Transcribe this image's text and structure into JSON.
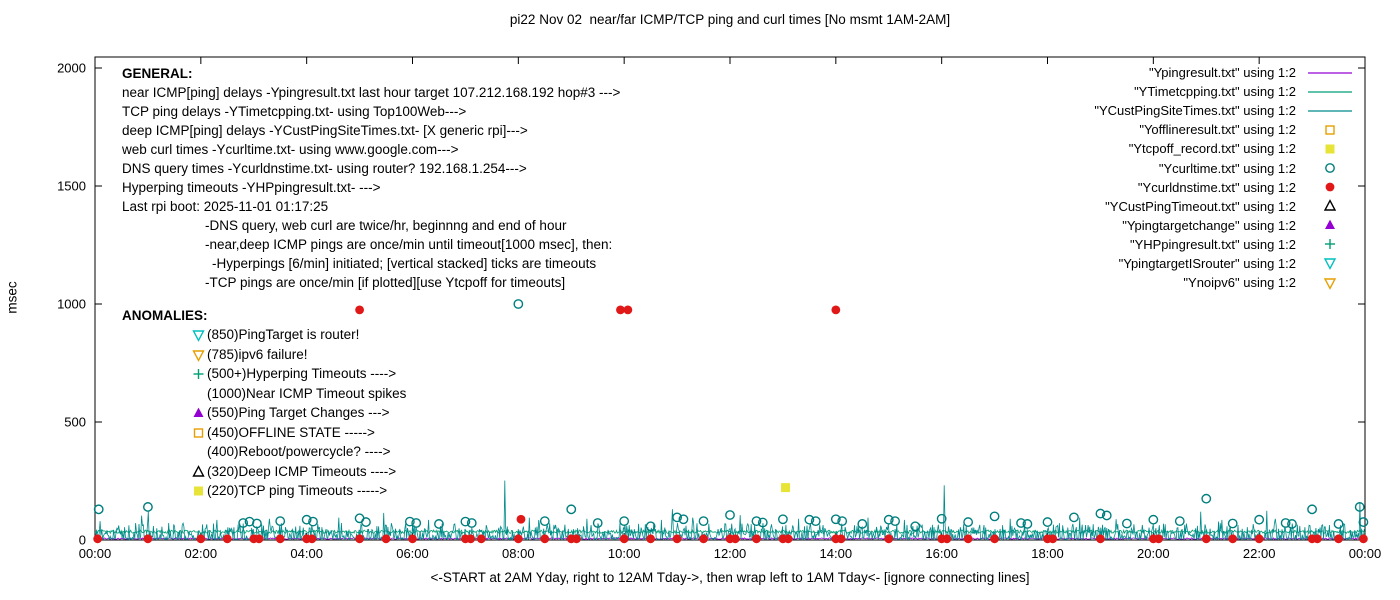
{
  "chart_data": {
    "type": "line+scatter",
    "title": "pi22 Nov 02  near/far ICMP/TCP ping and curl times [No msmt 1AM-2AM]",
    "xlabel": "<-START at 2AM Yday, right to 12AM Tday->, then wrap left to 1AM Tday<- [ignore connecting lines]",
    "ylabel": "msec",
    "x_range_hours": [
      0,
      24
    ],
    "ylim": [
      0,
      2000
    ],
    "x_ticks": [
      "00:00",
      "02:00",
      "04:00",
      "06:00",
      "08:00",
      "10:00",
      "12:00",
      "14:00",
      "16:00",
      "18:00",
      "20:00",
      "22:00",
      "00:00"
    ],
    "y_ticks": [
      0,
      500,
      1000,
      1500,
      2000
    ],
    "grid": false,
    "legend_position": "top-right-inside",
    "noise_seed": 42,
    "line_series": [
      {
        "name": "Ypingresult",
        "color": "#9400d3",
        "base": 3,
        "amp": 6,
        "skew": false,
        "spikes": []
      },
      {
        "name": "YTimetcpping",
        "color": "#009e73",
        "base": 28,
        "amp": 14,
        "skew": false,
        "spikes": []
      },
      {
        "name": "YCustPingSiteTimes",
        "color": "#008b8b",
        "base": 2,
        "amp": 70,
        "skew": true,
        "spikes": [
          [
            0.1,
            80
          ],
          [
            1.0,
            120
          ],
          [
            2.3,
            85
          ],
          [
            3.3,
            90
          ],
          [
            4.6,
            95
          ],
          [
            5.45,
            115
          ],
          [
            6.3,
            85
          ],
          [
            7.75,
            252
          ],
          [
            8.2,
            95
          ],
          [
            9.3,
            90
          ],
          [
            10.7,
            85
          ],
          [
            11.3,
            95
          ],
          [
            12.2,
            105
          ],
          [
            13.3,
            90
          ],
          [
            14.6,
            95
          ],
          [
            15.3,
            85
          ],
          [
            16.05,
            232
          ],
          [
            17.3,
            90
          ],
          [
            18.6,
            95
          ],
          [
            19.3,
            88
          ],
          [
            20.9,
            120
          ],
          [
            21.3,
            85
          ],
          [
            22.3,
            90
          ],
          [
            23.9,
            160
          ]
        ]
      }
    ],
    "scatter_series": [
      {
        "name": "Ycurltime",
        "marker": "circle-open",
        "color": "#007e7e",
        "points": [
          [
            0.07,
            130
          ],
          [
            1.0,
            140
          ],
          [
            2.8,
            72
          ],
          [
            2.92,
            78
          ],
          [
            3.06,
            70
          ],
          [
            3.5,
            80
          ],
          [
            4.0,
            86
          ],
          [
            4.12,
            78
          ],
          [
            5.0,
            92
          ],
          [
            5.12,
            76
          ],
          [
            5.95,
            78
          ],
          [
            6.07,
            72
          ],
          [
            6.5,
            68
          ],
          [
            7.0,
            78
          ],
          [
            7.12,
            72
          ],
          [
            8.0,
            1000
          ],
          [
            8.5,
            80
          ],
          [
            9.0,
            130
          ],
          [
            9.5,
            72
          ],
          [
            10.0,
            80
          ],
          [
            10.5,
            58
          ],
          [
            11.0,
            96
          ],
          [
            11.12,
            88
          ],
          [
            11.5,
            80
          ],
          [
            12.0,
            106
          ],
          [
            12.5,
            80
          ],
          [
            12.62,
            74
          ],
          [
            13.0,
            88
          ],
          [
            13.5,
            86
          ],
          [
            13.62,
            80
          ],
          [
            14.0,
            88
          ],
          [
            14.12,
            80
          ],
          [
            14.5,
            68
          ],
          [
            15.0,
            86
          ],
          [
            15.12,
            80
          ],
          [
            15.5,
            58
          ],
          [
            16.0,
            90
          ],
          [
            16.5,
            76
          ],
          [
            17.0,
            100
          ],
          [
            17.5,
            72
          ],
          [
            17.62,
            68
          ],
          [
            18.0,
            76
          ],
          [
            18.5,
            96
          ],
          [
            19.0,
            112
          ],
          [
            19.12,
            104
          ],
          [
            19.5,
            70
          ],
          [
            20.0,
            86
          ],
          [
            20.5,
            80
          ],
          [
            21.0,
            175
          ],
          [
            21.5,
            70
          ],
          [
            22.0,
            86
          ],
          [
            22.5,
            72
          ],
          [
            22.62,
            68
          ],
          [
            23.0,
            130
          ],
          [
            23.5,
            68
          ],
          [
            23.9,
            140
          ],
          [
            23.97,
            76
          ]
        ]
      },
      {
        "name": "Ycurldnstime",
        "marker": "circle-filled",
        "color": "#e01818",
        "points": [
          [
            0.05,
            5
          ],
          [
            1.0,
            5
          ],
          [
            2.0,
            5
          ],
          [
            2.5,
            5
          ],
          [
            3.0,
            5
          ],
          [
            3.1,
            5
          ],
          [
            3.5,
            5
          ],
          [
            4.0,
            5
          ],
          [
            4.1,
            5
          ],
          [
            5.0,
            5
          ],
          [
            5.0,
            975
          ],
          [
            5.5,
            5
          ],
          [
            6.0,
            5
          ],
          [
            7.0,
            5
          ],
          [
            7.1,
            5
          ],
          [
            7.3,
            5
          ],
          [
            8.0,
            5
          ],
          [
            8.05,
            88
          ],
          [
            8.5,
            5
          ],
          [
            9.0,
            5
          ],
          [
            9.1,
            5
          ],
          [
            9.93,
            975
          ],
          [
            10.0,
            5
          ],
          [
            10.07,
            975
          ],
          [
            10.5,
            5
          ],
          [
            11.0,
            5
          ],
          [
            11.5,
            5
          ],
          [
            12.0,
            5
          ],
          [
            12.1,
            5
          ],
          [
            12.5,
            5
          ],
          [
            13.0,
            5
          ],
          [
            13.1,
            5
          ],
          [
            14.0,
            975
          ],
          [
            14.0,
            5
          ],
          [
            14.1,
            5
          ],
          [
            15.0,
            5
          ],
          [
            16.0,
            5
          ],
          [
            16.1,
            5
          ],
          [
            16.5,
            5
          ],
          [
            17.0,
            5
          ],
          [
            18.0,
            5
          ],
          [
            18.1,
            5
          ],
          [
            19.0,
            5
          ],
          [
            20.0,
            5
          ],
          [
            20.1,
            5
          ],
          [
            21.0,
            5
          ],
          [
            21.5,
            5
          ],
          [
            22.0,
            5
          ],
          [
            23.0,
            5
          ],
          [
            23.1,
            5
          ],
          [
            23.5,
            5
          ],
          [
            23.97,
            5
          ]
        ]
      },
      {
        "name": "Ytcpoff_record",
        "marker": "square-filled",
        "color": "#e8e337",
        "points": [
          [
            13.05,
            222
          ]
        ]
      }
    ]
  },
  "legend": {
    "entries": [
      {
        "label": "\"Ypingresult.txt\" using 1:2",
        "sample": "line",
        "color": "#9400d3"
      },
      {
        "label": "\"YTimetcpping.txt\" using 1:2",
        "sample": "line",
        "color": "#009e73"
      },
      {
        "label": "\"YCustPingSiteTimes.txt\" using 1:2",
        "sample": "line",
        "color": "#008b8b"
      },
      {
        "label": "\"Yofflineresult.txt\" using 1:2",
        "sample": "square-open",
        "color": "#e69f00"
      },
      {
        "label": "\"Ytcpoff_record.txt\" using 1:2",
        "sample": "square-filled",
        "color": "#e8e337"
      },
      {
        "label": "\"Ycurltime.txt\" using 1:2",
        "sample": "circle-open",
        "color": "#007e7e"
      },
      {
        "label": "\"Ycurldnstime.txt\" using 1:2",
        "sample": "circle-filled",
        "color": "#e01818"
      },
      {
        "label": "\"YCustPingTimeout.txt\" using 1:2",
        "sample": "triangle-up-open",
        "color": "#000000"
      },
      {
        "label": "\"Ypingtargetchange\" using 1:2",
        "sample": "triangle-up-filled",
        "color": "#9400d3"
      },
      {
        "label": "\"YHPpingresult.txt\" using 1:2",
        "sample": "plus",
        "color": "#009e73"
      },
      {
        "label": "\"YpingtargetISrouter\" using 1:2",
        "sample": "triangle-down-open",
        "color": "#00bfbf"
      },
      {
        "label": "\"Ynoipv6\" using 1:2",
        "sample": "triangle-down-open",
        "color": "#e69f00"
      }
    ]
  },
  "annotations": {
    "general_header": "GENERAL:",
    "general_lines": [
      "near ICMP[ping] delays -Ypingresult.txt last hour target 107.212.168.192 hop#3 --->",
      "TCP ping delays -YTimetcpping.txt- using Top100Web--->",
      "deep ICMP[ping] delays -YCustPingSiteTimes.txt- [X generic rpi]--->",
      "web curl times -Ycurltime.txt- using www.google.com--->",
      "DNS query times -Ycurldnstime.txt- using router? 192.168.1.254--->",
      "Hyperping timeouts -YHPpingresult.txt- --->",
      "Last rpi boot: 2025-11-01 01:17:25"
    ],
    "general_sub_lines": [
      "-DNS query, web curl are twice/hr, beginnng and end of hour",
      "-near,deep ICMP pings are once/min until timeout[1000 msec], then:",
      "-Hyperpings [6/min] initiated; [vertical stacked] ticks are timeouts",
      "-TCP pings are once/min [if plotted][use Ytcpoff for timeouts]"
    ],
    "anomalies_header": "ANOMALIES:",
    "anomaly_rows": [
      {
        "marker": "triangle-down-open",
        "color": "#00bfbf",
        "text": "(850)PingTarget is router!"
      },
      {
        "marker": "triangle-down-open",
        "color": "#e69f00",
        "text": "(785)ipv6 failure!"
      },
      {
        "marker": "plus",
        "color": "#009e73",
        "text": "(500+)Hyperping Timeouts ---->"
      },
      {
        "marker": "none",
        "color": "#000000",
        "text": "(1000)Near ICMP Timeout spikes"
      },
      {
        "marker": "triangle-up-filled",
        "color": "#9400d3",
        "text": "(550)Ping Target Changes --->"
      },
      {
        "marker": "square-open",
        "color": "#e69f00",
        "text": "(450)OFFLINE STATE ----->"
      },
      {
        "marker": "none",
        "color": "#000000",
        "text": "(400)Reboot/powercycle? ---->"
      },
      {
        "marker": "triangle-up-open",
        "color": "#000000",
        "text": "(320)Deep ICMP Timeouts ---->"
      },
      {
        "marker": "square-filled",
        "color": "#e8e337",
        "text": "(220)TCP ping Timeouts ----->"
      }
    ]
  }
}
